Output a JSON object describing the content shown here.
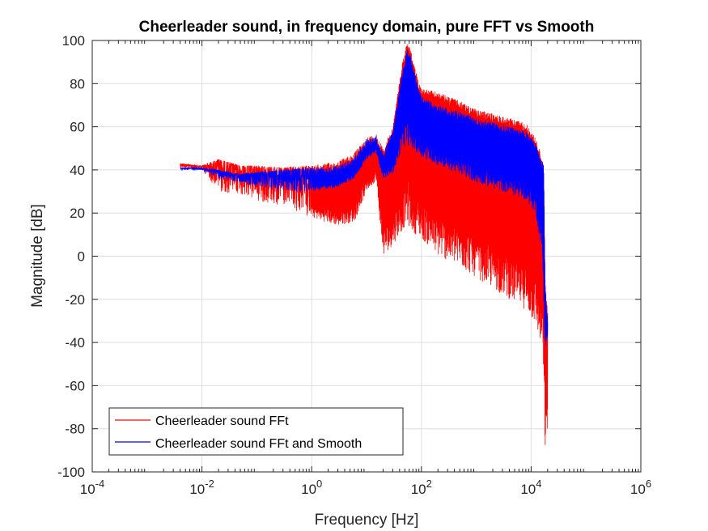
{
  "chart_data": {
    "type": "line",
    "title": "Cheerleader sound, in frequency domain, pure FFT vs Smooth",
    "xlabel": "Frequency [Hz]",
    "ylabel": "Magnitude [dB]",
    "xscale": "log",
    "xlim": [
      0.0001,
      1000000
    ],
    "ylim": [
      -100,
      100
    ],
    "x_ticks": [
      {
        "value": 0.0001,
        "base": "10",
        "exp": "-4"
      },
      {
        "value": 0.01,
        "base": "10",
        "exp": "-2"
      },
      {
        "value": 1,
        "base": "10",
        "exp": "0"
      },
      {
        "value": 100,
        "base": "10",
        "exp": "2"
      },
      {
        "value": 10000,
        "base": "10",
        "exp": "4"
      },
      {
        "value": 1000000,
        "base": "10",
        "exp": "6"
      }
    ],
    "y_ticks": [
      {
        "value": 100,
        "label": "100"
      },
      {
        "value": 80,
        "label": "80"
      },
      {
        "value": 60,
        "label": "60"
      },
      {
        "value": 40,
        "label": "40"
      },
      {
        "value": 20,
        "label": "20"
      },
      {
        "value": 0,
        "label": "0"
      },
      {
        "value": -20,
        "label": "-20"
      },
      {
        "value": -40,
        "label": "-40"
      },
      {
        "value": -60,
        "label": "-60"
      },
      {
        "value": -80,
        "label": "-80"
      },
      {
        "value": -100,
        "label": "-100"
      }
    ],
    "grid": true,
    "legend_position": "bottom-left",
    "series": [
      {
        "name": "Cheerleader sound FFt",
        "color": "#ff0000",
        "band_upper": [
          [
            0.004,
            43
          ],
          [
            0.01,
            42
          ],
          [
            0.02,
            45
          ],
          [
            0.05,
            42
          ],
          [
            0.1,
            42
          ],
          [
            0.3,
            41
          ],
          [
            1,
            42
          ],
          [
            3,
            44
          ],
          [
            6,
            48
          ],
          [
            10,
            55
          ],
          [
            15,
            57
          ],
          [
            20,
            50
          ],
          [
            30,
            60
          ],
          [
            45,
            90
          ],
          [
            55,
            100
          ],
          [
            65,
            95
          ],
          [
            80,
            85
          ],
          [
            100,
            78
          ],
          [
            200,
            76
          ],
          [
            500,
            72
          ],
          [
            1000,
            68
          ],
          [
            3000,
            65
          ],
          [
            8000,
            62
          ],
          [
            12000,
            55
          ],
          [
            14000,
            50
          ],
          [
            16000,
            44
          ],
          [
            17000,
            42
          ],
          [
            18000,
            -10
          ],
          [
            19000,
            -20
          ],
          [
            20000,
            -25
          ]
        ],
        "band_lower": [
          [
            0.004,
            41
          ],
          [
            0.01,
            40
          ],
          [
            0.02,
            30
          ],
          [
            0.05,
            28
          ],
          [
            0.1,
            26
          ],
          [
            0.3,
            22
          ],
          [
            1,
            18
          ],
          [
            3,
            14
          ],
          [
            6,
            16
          ],
          [
            10,
            30
          ],
          [
            15,
            35
          ],
          [
            20,
            0
          ],
          [
            30,
            5
          ],
          [
            45,
            12
          ],
          [
            55,
            15
          ],
          [
            65,
            12
          ],
          [
            80,
            10
          ],
          [
            100,
            8
          ],
          [
            200,
            0
          ],
          [
            500,
            -5
          ],
          [
            1000,
            -10
          ],
          [
            3000,
            -18
          ],
          [
            8000,
            -25
          ],
          [
            12000,
            -32
          ],
          [
            14000,
            -38
          ],
          [
            16000,
            -45
          ],
          [
            17000,
            -60
          ],
          [
            18000,
            -90
          ],
          [
            19000,
            -85
          ],
          [
            20000,
            -80
          ]
        ]
      },
      {
        "name": "Cheerleader sound FFt and Smooth",
        "color": "#0000ff",
        "band_upper": [
          [
            0.004,
            41
          ],
          [
            0.01,
            41
          ],
          [
            0.02,
            40
          ],
          [
            0.05,
            38
          ],
          [
            0.1,
            39
          ],
          [
            0.3,
            40
          ],
          [
            1,
            41
          ],
          [
            3,
            42
          ],
          [
            6,
            46
          ],
          [
            10,
            54
          ],
          [
            15,
            56
          ],
          [
            20,
            48
          ],
          [
            30,
            58
          ],
          [
            45,
            86
          ],
          [
            55,
            96
          ],
          [
            65,
            92
          ],
          [
            80,
            82
          ],
          [
            100,
            74
          ],
          [
            200,
            70
          ],
          [
            500,
            67
          ],
          [
            1000,
            64
          ],
          [
            3000,
            61
          ],
          [
            8000,
            58
          ],
          [
            12000,
            53
          ],
          [
            14000,
            48
          ],
          [
            16000,
            44
          ],
          [
            17000,
            42
          ],
          [
            18000,
            -15
          ],
          [
            19000,
            -22
          ],
          [
            20000,
            -28
          ]
        ],
        "band_lower": [
          [
            0.004,
            40
          ],
          [
            0.01,
            40
          ],
          [
            0.02,
            36
          ],
          [
            0.05,
            34
          ],
          [
            0.1,
            32
          ],
          [
            0.3,
            30
          ],
          [
            1,
            30
          ],
          [
            3,
            32
          ],
          [
            6,
            36
          ],
          [
            10,
            45
          ],
          [
            15,
            48
          ],
          [
            20,
            36
          ],
          [
            30,
            38
          ],
          [
            45,
            50
          ],
          [
            55,
            52
          ],
          [
            65,
            50
          ],
          [
            80,
            48
          ],
          [
            100,
            46
          ],
          [
            200,
            42
          ],
          [
            500,
            38
          ],
          [
            1000,
            34
          ],
          [
            3000,
            30
          ],
          [
            8000,
            26
          ],
          [
            12000,
            20
          ],
          [
            14000,
            10
          ],
          [
            16000,
            0
          ],
          [
            17000,
            -20
          ],
          [
            18000,
            -45
          ],
          [
            19000,
            -40
          ],
          [
            20000,
            -38
          ]
        ]
      }
    ]
  }
}
